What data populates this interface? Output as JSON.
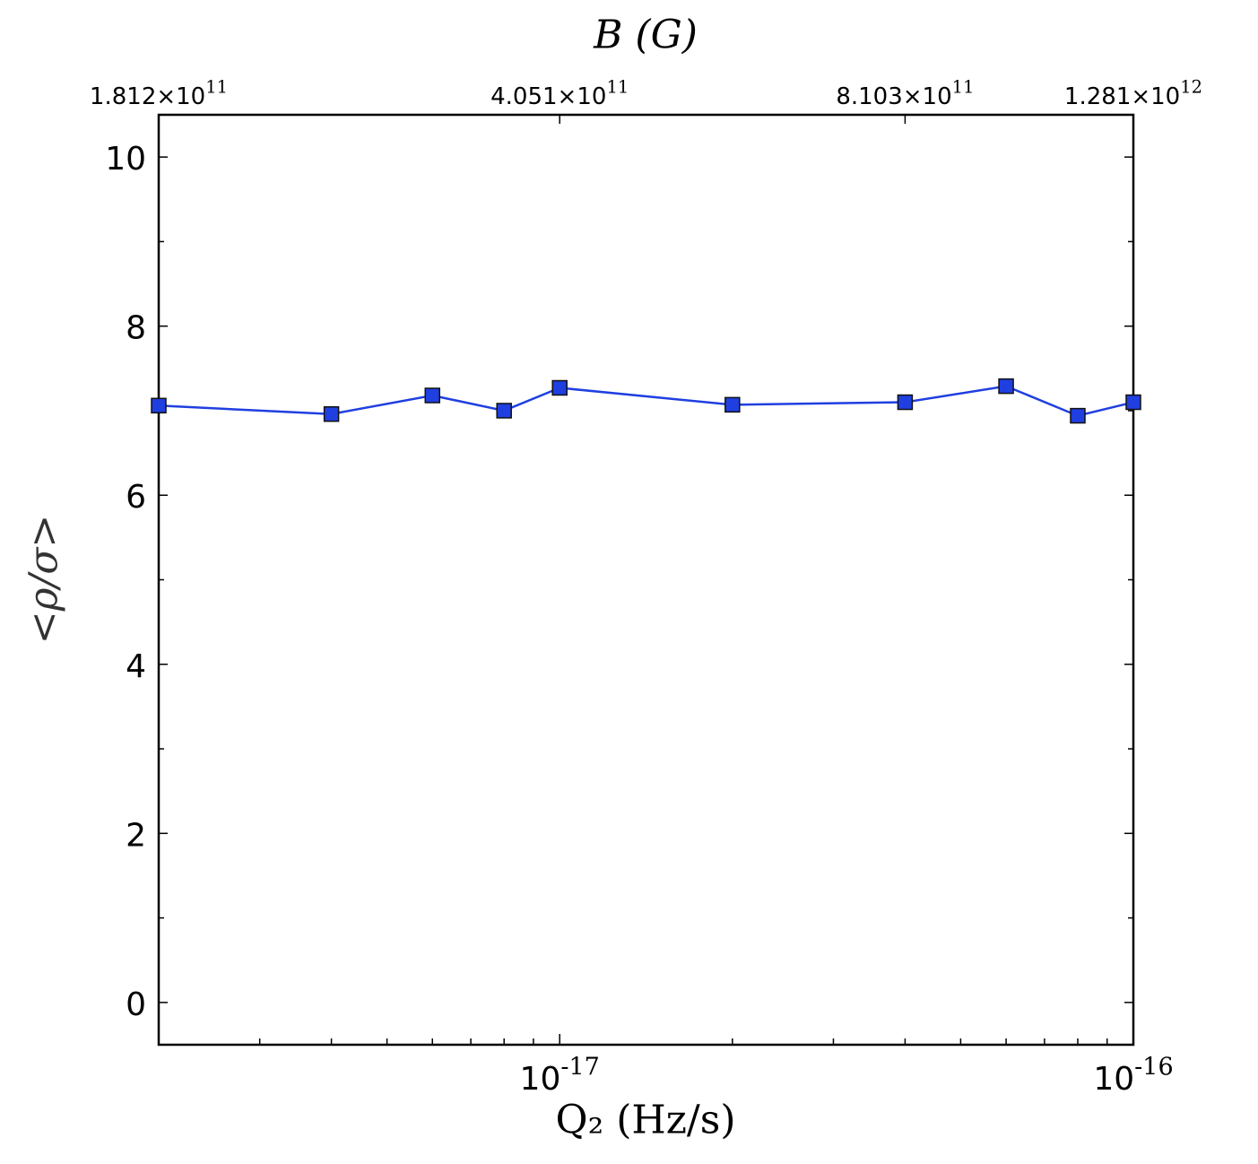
{
  "chart_data": {
    "type": "line",
    "xlabel": "Q₂ (Hz/s)",
    "ylabel": "<ρ/σ>",
    "x2label": "B (G)",
    "x": [
      2e-18,
      4e-18,
      6e-18,
      8e-18,
      1e-17,
      2e-17,
      4e-17,
      6e-17,
      8e-17,
      1e-16
    ],
    "series": [
      {
        "color": "#1f3fe0",
        "values": [
          7.06,
          6.96,
          7.18,
          7.0,
          7.27,
          7.07,
          7.1,
          7.29,
          6.94,
          7.1
        ]
      }
    ],
    "xscale": "log",
    "xlim": [
      2e-18,
      1e-16
    ],
    "ylim": [
      -0.5,
      10.5
    ],
    "xticks": [
      {
        "value": 1e-17,
        "label": "10",
        "exponent": "-17"
      },
      {
        "value": 1e-16,
        "label": "10",
        "exponent": "-16"
      }
    ],
    "xminorticks": [
      3e-18,
      4e-18,
      5e-18,
      6e-18,
      7e-18,
      8e-18,
      9e-18,
      2e-17,
      3e-17,
      4e-17,
      5e-17,
      6e-17,
      7e-17,
      8e-17,
      9e-17
    ],
    "x2ticks": [
      {
        "value": 2e-18,
        "label": "1.812×10",
        "exponent": "11"
      },
      {
        "value": 1e-17,
        "label": "4.051×10",
        "exponent": "11"
      },
      {
        "value": 4e-17,
        "label": "8.103×10",
        "exponent": "11"
      },
      {
        "value": 1e-16,
        "label": "1.281×10",
        "exponent": "12"
      }
    ],
    "yticks": [
      0,
      2,
      4,
      6,
      8,
      10
    ],
    "yminorticks": [
      1,
      3,
      5,
      7,
      9
    ]
  }
}
